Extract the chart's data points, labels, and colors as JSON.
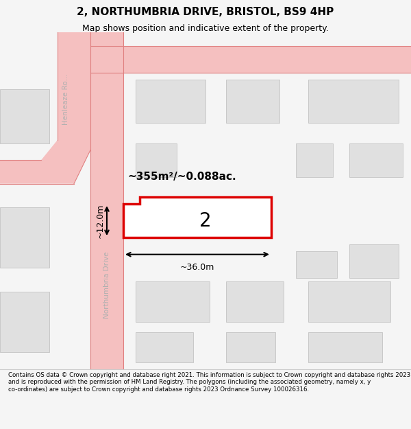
{
  "title": "2, NORTHUMBRIA DRIVE, BRISTOL, BS9 4HP",
  "subtitle": "Map shows position and indicative extent of the property.",
  "footer": "Contains OS data © Crown copyright and database right 2021. This information is subject to Crown copyright and database rights 2023 and is reproduced with the permission of HM Land Registry. The polygons (including the associated geometry, namely x, y co-ordinates) are subject to Crown copyright and database rights 2023 Ordnance Survey 100026316.",
  "bg_color": "#f5f5f5",
  "map_bg": "#ffffff",
  "road_color": "#f5c0c0",
  "road_line_color": "#e08080",
  "building_fill": "#e0e0e0",
  "building_edge": "#c8c8c8",
  "highlight_fill": "#ffffff",
  "highlight_edge": "#dd0000",
  "street_label_color": "#b0b0b0",
  "dim_color": "#000000",
  "area_label": "~355m²/~0.088ac.",
  "plot_label": "2",
  "width_label": "~36.0m",
  "height_label": "~12.0m"
}
